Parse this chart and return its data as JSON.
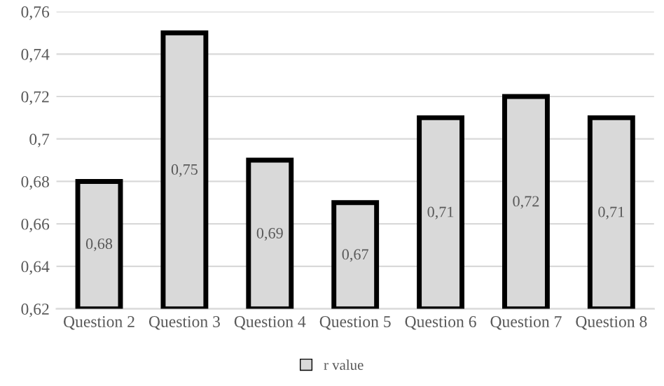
{
  "chart_data": {
    "type": "bar",
    "categories": [
      "Question 2",
      "Question 3",
      "Question 4",
      "Question 5",
      "Question 6",
      "Question 7",
      "Question 8"
    ],
    "series": [
      {
        "name": "r value",
        "color": "#d9d9d9",
        "values": [
          0.68,
          0.75,
          0.69,
          0.67,
          0.71,
          0.72,
          0.71
        ],
        "value_labels": [
          "0,68",
          "0,75",
          "0,69",
          "0,67",
          "0,71",
          "0,72",
          "0,71"
        ]
      }
    ],
    "ylim": [
      0.62,
      0.76
    ],
    "yticks": [
      {
        "value": 0.62,
        "label": "0,62"
      },
      {
        "value": 0.64,
        "label": "0,64"
      },
      {
        "value": 0.66,
        "label": "0,66"
      },
      {
        "value": 0.68,
        "label": "0,68"
      },
      {
        "value": 0.7,
        "label": "0,7"
      },
      {
        "value": 0.72,
        "label": "0,72"
      },
      {
        "value": 0.74,
        "label": "0,74"
      },
      {
        "value": 0.76,
        "label": "0,76"
      }
    ],
    "grid": "y",
    "legend": "bottom"
  }
}
